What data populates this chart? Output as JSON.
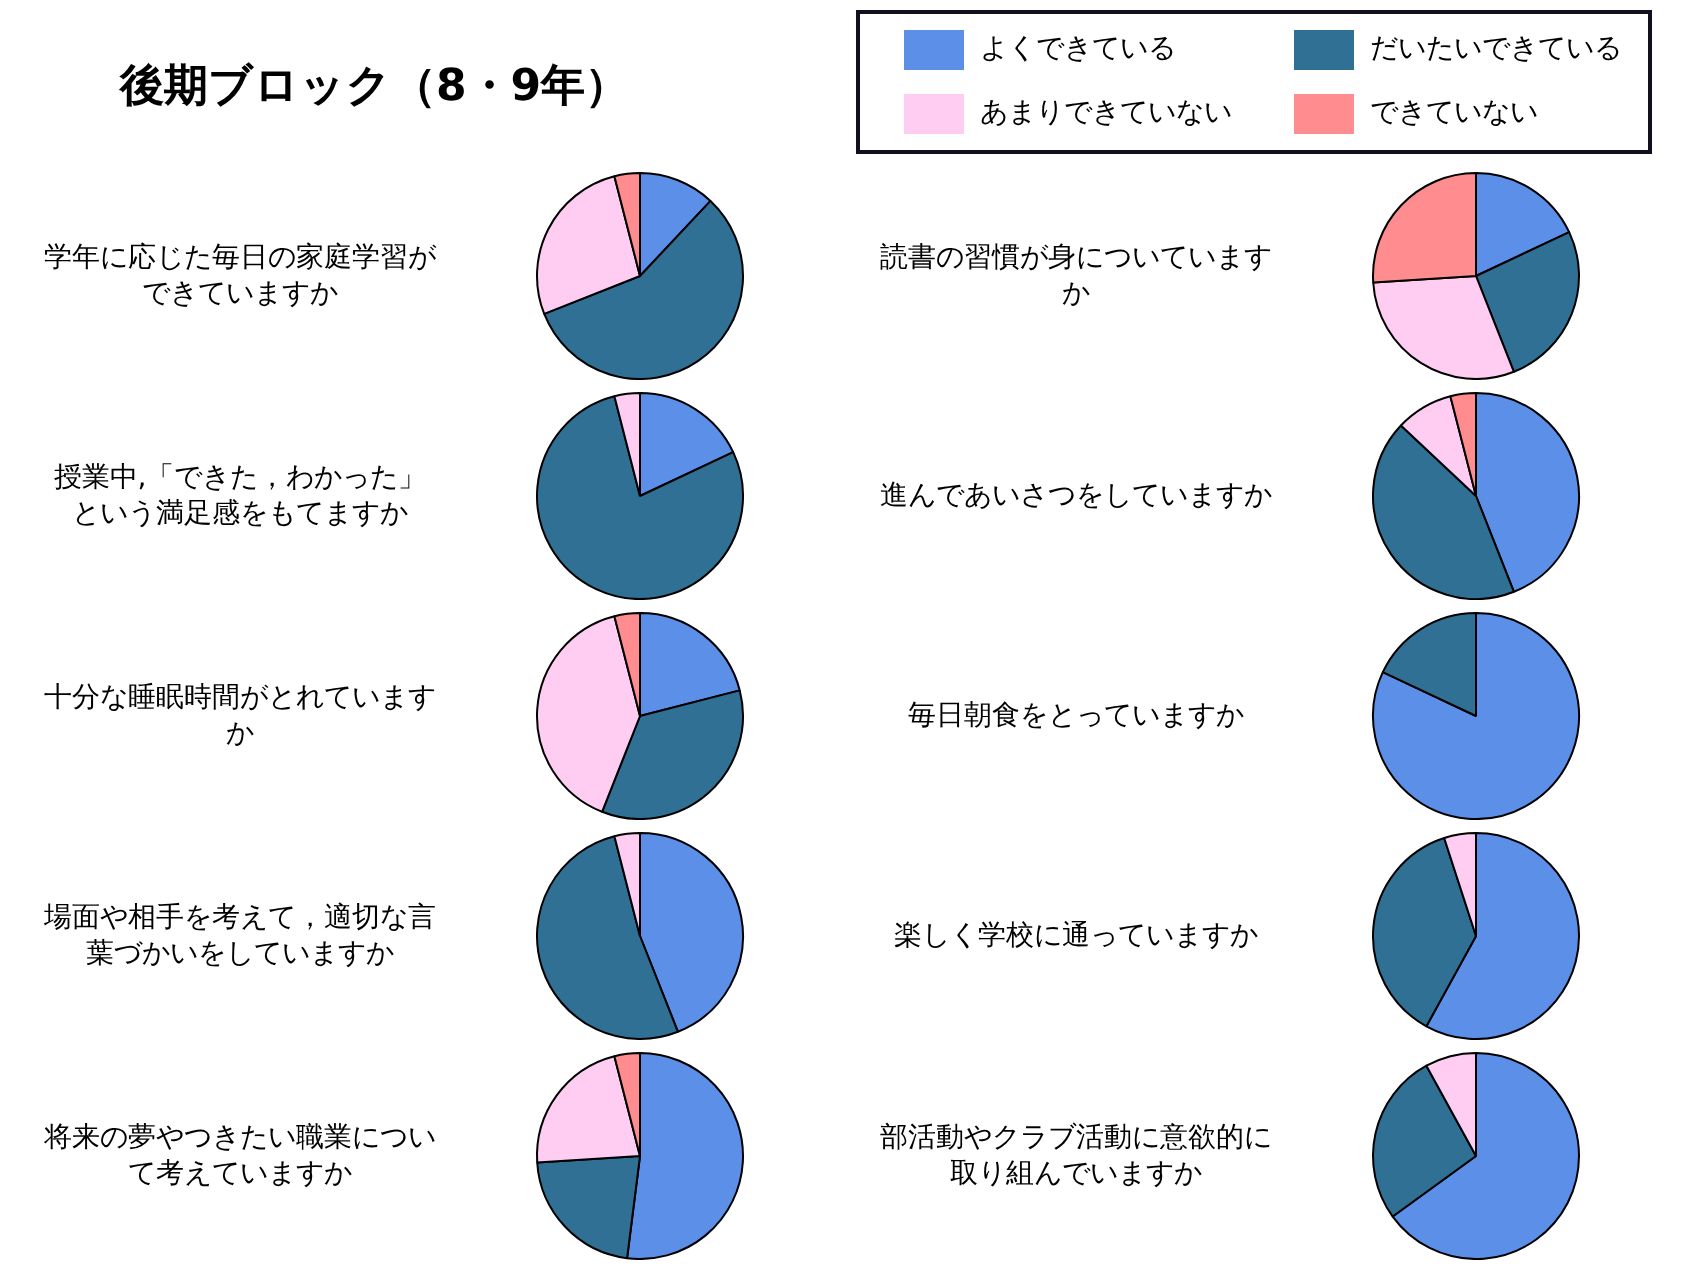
{
  "chart_data": [
    {
      "type": "pie",
      "title": "後期ブロック（8・9年）",
      "subtitle": "学年に応じた毎日の家庭学習ができていますか",
      "legend": "top right",
      "categories": [
        "よくできている",
        "だいたいできている",
        "あまりできていない",
        "できていない"
      ],
      "colors": [
        "#5b8fe8",
        "#307094",
        "#ffccf2",
        "#ff8c8f"
      ],
      "values": [
        12,
        57,
        27,
        4
      ]
    },
    {
      "type": "pie",
      "subtitle": "読書の習慣が身についていますか",
      "categories": [
        null,
        null,
        null,
        null
      ],
      "colors": [
        "#5b8fe8",
        "#307094",
        "#ffccf2",
        "#ff8c8f"
      ],
      "values": [
        18,
        26,
        30,
        26
      ]
    },
    {
      "type": "pie",
      "subtitle": "授業中,「できた，わかった」という満足感をもてますか",
      "categories": [
        null,
        null,
        null,
        null
      ],
      "colors": [
        "#5b8fe8",
        "#307094",
        "#ffccf2",
        "#ff8c8f"
      ],
      "values": [
        18,
        78,
        4,
        0
      ]
    },
    {
      "type": "pie",
      "subtitle": "進んであいさつをしていますか",
      "categories": [
        null,
        null,
        null,
        null
      ],
      "colors": [
        "#5b8fe8",
        "#307094",
        "#ffccf2",
        "#ff8c8f"
      ],
      "values": [
        44,
        43,
        9,
        4
      ]
    },
    {
      "type": "pie",
      "subtitle": "十分な睡眠時間がとれていますか",
      "categories": [
        null,
        null,
        null,
        null
      ],
      "colors": [
        "#5b8fe8",
        "#307094",
        "#ffccf2",
        "#ff8c8f"
      ],
      "values": [
        21,
        35,
        40,
        4
      ]
    },
    {
      "type": "pie",
      "subtitle": "毎日朝食をとっていますか",
      "categories": [
        null,
        null,
        null,
        null
      ],
      "colors": [
        "#5b8fe8",
        "#307094",
        "#ffccf2",
        "#ff8c8f"
      ],
      "values": [
        82,
        18,
        0,
        0
      ]
    },
    {
      "type": "pie",
      "subtitle": "場面や相手を考えて，適切な言葉づかいをしていますか",
      "categories": [
        null,
        null,
        null,
        null
      ],
      "colors": [
        "#5b8fe8",
        "#307094",
        "#ffccf2",
        "#ff8c8f"
      ],
      "values": [
        44,
        52,
        4,
        0
      ]
    },
    {
      "type": "pie",
      "subtitle": "楽しく学校に通っていますか",
      "categories": [
        null,
        null,
        null,
        null
      ],
      "colors": [
        "#5b8fe8",
        "#307094",
        "#ffccf2",
        "#ff8c8f"
      ],
      "values": [
        58,
        37,
        5,
        0
      ]
    },
    {
      "type": "pie",
      "subtitle": "将来の夢やつきたい職業について考えていますか",
      "categories": [
        null,
        null,
        null,
        null
      ],
      "colors": [
        "#5b8fe8",
        "#307094",
        "#ffccf2",
        "#ff8c8f"
      ],
      "values": [
        52,
        22,
        22,
        4
      ]
    },
    {
      "type": "pie",
      "subtitle": "部活動やクラブ活動に意欲的に取り組んでいますか",
      "categories": [
        null,
        null,
        null,
        null
      ],
      "colors": [
        "#5b8fe8",
        "#307094",
        "#ffccf2",
        "#ff8c8f"
      ],
      "values": [
        65,
        27,
        8,
        0
      ]
    }
  ]
}
